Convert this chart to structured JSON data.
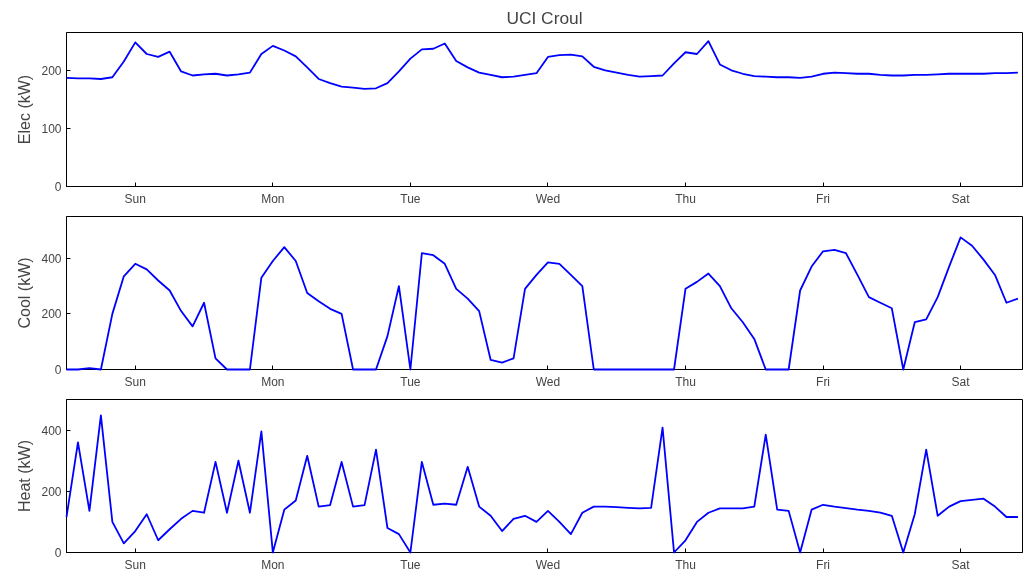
{
  "chart_data": [
    {
      "type": "line",
      "title": "UCI Croul",
      "ylabel": "Elec (kW)",
      "ylim": [
        0,
        265
      ],
      "yticks": [
        0,
        100,
        200
      ],
      "grid": false,
      "categories": [
        null,
        null,
        null,
        null,
        null,
        null,
        "Sun",
        null,
        null,
        null,
        null,
        null,
        null,
        null,
        null,
        null,
        null,
        null,
        "Mon",
        null,
        null,
        null,
        null,
        null,
        null,
        null,
        null,
        null,
        null,
        null,
        "Tue",
        null,
        null,
        null,
        null,
        null,
        null,
        null,
        null,
        null,
        null,
        null,
        "Wed",
        null,
        null,
        null,
        null,
        null,
        null,
        null,
        null,
        null,
        null,
        null,
        "Thu",
        null,
        null,
        null,
        null,
        null,
        null,
        null,
        null,
        null,
        null,
        null,
        "Fri",
        null,
        null,
        null,
        null,
        null,
        null,
        null,
        null,
        null,
        null,
        null,
        "Sat",
        null,
        null,
        null,
        null,
        null
      ],
      "series": [
        {
          "color": "#0000ff",
          "values": [
            187,
            186,
            186,
            185,
            188,
            215,
            248,
            228,
            223,
            232,
            198,
            191,
            193,
            194,
            191,
            193,
            196,
            228,
            242,
            234,
            224,
            205,
            185,
            178,
            172,
            170,
            168,
            169,
            178,
            198,
            220,
            236,
            237,
            246,
            216,
            205,
            196,
            192,
            188,
            189,
            192,
            195,
            223,
            226,
            227,
            224,
            206,
            200,
            196,
            192,
            189,
            190,
            191,
            212,
            231,
            228,
            250,
            210,
            200,
            194,
            190,
            189,
            188,
            188,
            187,
            189,
            194,
            196,
            195,
            194,
            194,
            192,
            191,
            191,
            192,
            192,
            193,
            194,
            194,
            194,
            194,
            195,
            195,
            196
          ]
        }
      ]
    },
    {
      "type": "line",
      "ylabel": "Cool (kW)",
      "ylim": [
        0,
        550
      ],
      "yticks": [
        0,
        200,
        400
      ],
      "grid": false,
      "categories": [
        null,
        null,
        null,
        null,
        null,
        null,
        "Sun",
        null,
        null,
        null,
        null,
        null,
        null,
        null,
        null,
        null,
        null,
        null,
        "Mon",
        null,
        null,
        null,
        null,
        null,
        null,
        null,
        null,
        null,
        null,
        null,
        "Tue",
        null,
        null,
        null,
        null,
        null,
        null,
        null,
        null,
        null,
        null,
        null,
        "Wed",
        null,
        null,
        null,
        null,
        null,
        null,
        null,
        null,
        null,
        null,
        null,
        "Thu",
        null,
        null,
        null,
        null,
        null,
        null,
        null,
        null,
        null,
        null,
        null,
        "Fri",
        null,
        null,
        null,
        null,
        null,
        null,
        null,
        null,
        null,
        null,
        null,
        "Sat",
        null,
        null,
        null,
        null,
        null
      ],
      "series": [
        {
          "color": "#0000ff",
          "values": [
            0,
            0,
            5,
            0,
            200,
            335,
            380,
            360,
            320,
            284,
            210,
            155,
            240,
            40,
            0,
            0,
            0,
            330,
            390,
            440,
            390,
            275,
            245,
            218,
            200,
            0,
            0,
            0,
            120,
            300,
            0,
            418,
            411,
            380,
            290,
            255,
            210,
            35,
            25,
            40,
            290,
            340,
            385,
            380,
            340,
            300,
            0,
            0,
            0,
            0,
            0,
            0,
            0,
            0,
            290,
            315,
            345,
            300,
            220,
            170,
            110,
            0,
            0,
            0,
            284,
            370,
            425,
            430,
            418,
            340,
            260,
            240,
            220,
            0,
            170,
            180,
            260,
            370,
            475,
            445,
            395,
            340,
            240,
            255
          ]
        }
      ]
    },
    {
      "type": "line",
      "ylabel": "Heat (kW)",
      "ylim": [
        0,
        500
      ],
      "yticks": [
        0,
        200,
        400
      ],
      "grid": false,
      "categories": [
        null,
        null,
        null,
        null,
        null,
        null,
        "Sun",
        null,
        null,
        null,
        null,
        null,
        null,
        null,
        null,
        null,
        null,
        null,
        "Mon",
        null,
        null,
        null,
        null,
        null,
        null,
        null,
        null,
        null,
        null,
        null,
        "Tue",
        null,
        null,
        null,
        null,
        null,
        null,
        null,
        null,
        null,
        null,
        null,
        "Wed",
        null,
        null,
        null,
        null,
        null,
        null,
        null,
        null,
        null,
        null,
        null,
        "Thu",
        null,
        null,
        null,
        null,
        null,
        null,
        null,
        null,
        null,
        null,
        null,
        "Fri",
        null,
        null,
        null,
        null,
        null,
        null,
        null,
        null,
        null,
        null,
        null,
        "Sat",
        null,
        null,
        null,
        null,
        null
      ],
      "series": [
        {
          "color": "#0000ff",
          "values": [
            116,
            360,
            136,
            448,
            100,
            30,
            70,
            125,
            40,
            76,
            110,
            136,
            130,
            296,
            130,
            300,
            130,
            396,
            0,
            140,
            170,
            316,
            150,
            155,
            296,
            150,
            155,
            336,
            80,
            60,
            0,
            296,
            156,
            160,
            156,
            280,
            150,
            120,
            70,
            110,
            120,
            100,
            136,
            100,
            60,
            130,
            150,
            150,
            148,
            146,
            144,
            146,
            408,
            0,
            40,
            100,
            130,
            144,
            144,
            144,
            150,
            385,
            140,
            136,
            0,
            140,
            156,
            150,
            145,
            140,
            136,
            130,
            120,
            0,
            125,
            336,
            120,
            150,
            168,
            172,
            176,
            150,
            116,
            116
          ]
        }
      ]
    }
  ]
}
